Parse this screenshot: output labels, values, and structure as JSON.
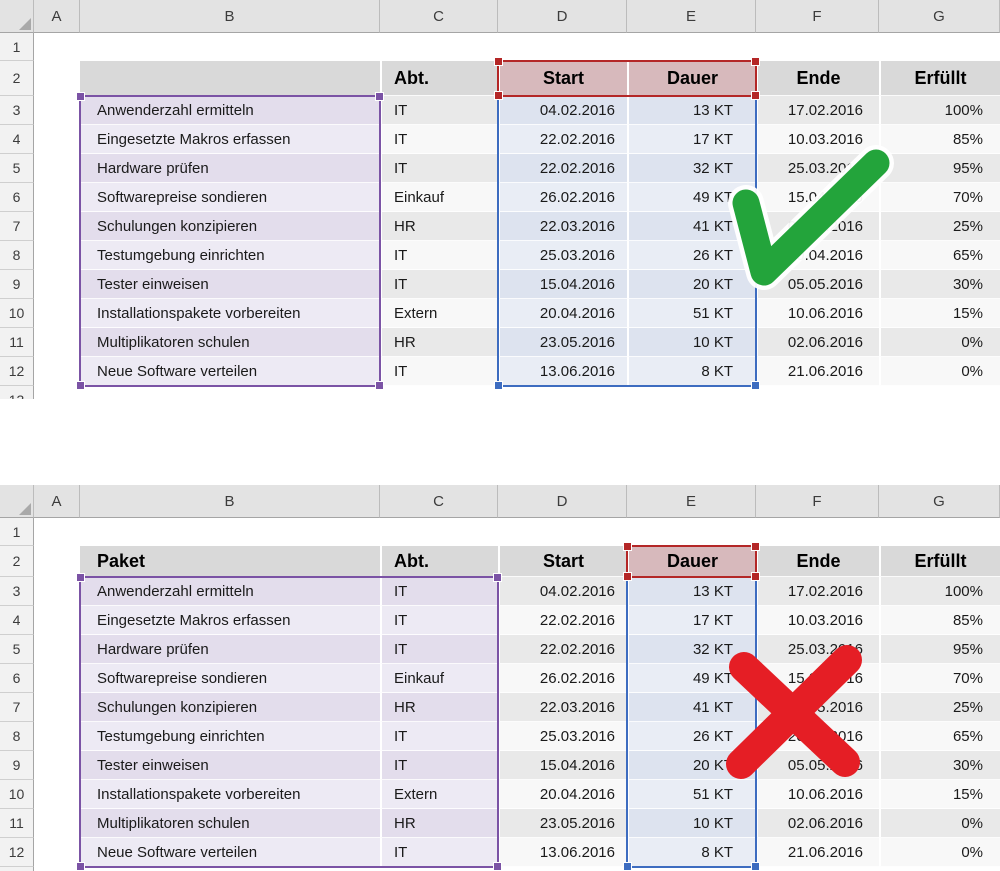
{
  "sheet": {
    "col_letters": [
      "A",
      "B",
      "C",
      "D",
      "E",
      "F",
      "G"
    ]
  },
  "top_sheet": {
    "row_numbers": [
      "1",
      "2",
      "3",
      "4",
      "5",
      "6",
      "7",
      "8",
      "9",
      "10",
      "11",
      "12",
      "13"
    ],
    "b2_label": "",
    "overlay": "green-checkmark",
    "selections": {
      "purple_range": "B3:B12",
      "red_range": "D2:E2",
      "blue_range": "D3:E12"
    }
  },
  "bottom_sheet": {
    "row_numbers": [
      "1",
      "2",
      "3",
      "4",
      "5",
      "6",
      "7",
      "8",
      "9",
      "10",
      "11",
      "12"
    ],
    "b2_label": "Paket",
    "overlay": "red-cross",
    "selections": {
      "purple_range": "B3:C12",
      "red_range": "E2",
      "blue_range": "E3:E12"
    }
  },
  "headers": {
    "abt": "Abt.",
    "start": "Start",
    "dauer": "Dauer",
    "ende": "Ende",
    "erfuellt": "Erfüllt"
  },
  "rows": [
    {
      "paket": "Anwenderzahl ermitteln",
      "abt": "IT",
      "start": "04.02.2016",
      "dauer": "13 KT",
      "ende": "17.02.2016",
      "erfuellt": "100%"
    },
    {
      "paket": "Eingesetzte Makros erfassen",
      "abt": "IT",
      "start": "22.02.2016",
      "dauer": "17 KT",
      "ende": "10.03.2016",
      "erfuellt": "85%"
    },
    {
      "paket": "Hardware prüfen",
      "abt": "IT",
      "start": "22.02.2016",
      "dauer": "32 KT",
      "ende": "25.03.2016",
      "erfuellt": "95%"
    },
    {
      "paket": "Softwarepreise sondieren",
      "abt": "Einkauf",
      "start": "26.02.2016",
      "dauer": "49 KT",
      "ende": "15.04.2016",
      "erfuellt": "70%"
    },
    {
      "paket": "Schulungen konzipieren",
      "abt": "HR",
      "start": "22.03.2016",
      "dauer": "41 KT",
      "ende": "02.05.2016",
      "erfuellt": "25%"
    },
    {
      "paket": "Testumgebung einrichten",
      "abt": "IT",
      "start": "25.03.2016",
      "dauer": "26 KT",
      "ende": "20.04.2016",
      "erfuellt": "65%"
    },
    {
      "paket": "Tester einweisen",
      "abt": "IT",
      "start": "15.04.2016",
      "dauer": "20 KT",
      "ende": "05.05.2016",
      "erfuellt": "30%"
    },
    {
      "paket": "Installationspakete vorbereiten",
      "abt": "Extern",
      "start": "20.04.2016",
      "dauer": "51 KT",
      "ende": "10.06.2016",
      "erfuellt": "15%"
    },
    {
      "paket": "Multiplikatoren schulen",
      "abt": "HR",
      "start": "23.05.2016",
      "dauer": "10 KT",
      "ende": "02.06.2016",
      "erfuellt": "0%"
    },
    {
      "paket": "Neue Software verteilen",
      "abt": "IT",
      "start": "13.06.2016",
      "dauer": "8 KT",
      "ende": "21.06.2016",
      "erfuellt": "0%"
    }
  ],
  "colors": {
    "header_fill": "#d9d9d9",
    "red_fill": "#d7b9bc",
    "gray_odd": "#e9e9e9",
    "gray_even": "#f8f8f8",
    "purple_odd": "#e3ddec",
    "purple_even": "#edeaf4",
    "blue_odd": "#dde3ef",
    "blue_even": "#e9edf5",
    "purple_border": "#7b53a5",
    "blue_border": "#3d6cc0",
    "red_border": "#b42727",
    "check_green": "#23a43b",
    "cross_red": "#e51e25"
  }
}
